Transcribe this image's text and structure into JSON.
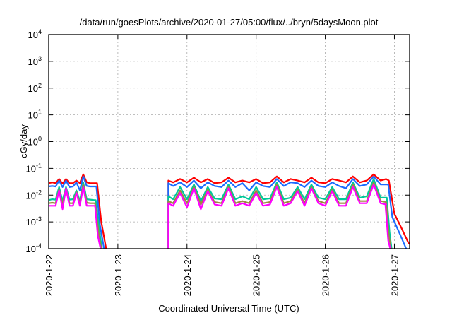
{
  "chart_data": {
    "type": "line",
    "title": "/data/run/goesPlots/archive/2020-01-27/05:00/flux/../bryn/5daysMoon.plot",
    "xlabel": "Coordinated Universal Time (UTC)",
    "ylabel": "cGy/day",
    "yscale": "log",
    "ylim": [
      0.0001,
      10000
    ],
    "xlim": [
      22.0,
      27.22
    ],
    "grid": true,
    "x_ticks": [
      {
        "value": 22,
        "label": "2020-1-22"
      },
      {
        "value": 23,
        "label": "2020-1-23"
      },
      {
        "value": 24,
        "label": "2020-1-24"
      },
      {
        "value": 25,
        "label": "2020-1-25"
      },
      {
        "value": 26,
        "label": "2020-1-26"
      },
      {
        "value": 27,
        "label": "2020-1-27"
      }
    ],
    "y_ticks": [
      {
        "value": 0.0001,
        "base": "10",
        "exp": "-4"
      },
      {
        "value": 0.001,
        "base": "10",
        "exp": "-3"
      },
      {
        "value": 0.01,
        "base": "10",
        "exp": "-2"
      },
      {
        "value": 0.1,
        "base": "10",
        "exp": "-1"
      },
      {
        "value": 1,
        "base": "10",
        "exp": "0"
      },
      {
        "value": 10,
        "base": "10",
        "exp": "1"
      },
      {
        "value": 100,
        "base": "10",
        "exp": "2"
      },
      {
        "value": 1000,
        "base": "10",
        "exp": "3"
      },
      {
        "value": 10000,
        "base": "10",
        "exp": "4"
      }
    ],
    "seg1_x": [
      22.0,
      22.05,
      22.1,
      22.15,
      22.2,
      22.25,
      22.3,
      22.35,
      22.4,
      22.45,
      22.5,
      22.55,
      22.6,
      22.66
    ],
    "seg2_x": [
      23.73,
      23.8,
      23.9,
      24.0,
      24.1,
      24.2,
      24.3,
      24.4,
      24.5,
      24.6,
      24.7,
      24.8,
      24.9,
      25.0,
      25.1,
      25.2,
      25.3,
      25.4,
      25.5,
      25.6,
      25.7,
      25.8,
      25.9,
      26.0,
      26.1,
      26.2,
      26.3,
      26.4,
      26.5,
      26.6,
      26.7,
      26.8,
      26.88
    ],
    "series": [
      {
        "name": "red",
        "color": "#ff0000",
        "seg1": [
          0.028,
          0.03,
          0.028,
          0.04,
          0.027,
          0.04,
          0.028,
          0.028,
          0.035,
          0.028,
          0.06,
          0.03,
          0.028,
          0.028
        ],
        "drop1": [
          [
            22.7,
            0.028
          ],
          [
            22.76,
            0.001
          ],
          [
            22.83,
            0.0001
          ]
        ],
        "seg2": [
          0.035,
          0.03,
          0.04,
          0.03,
          0.045,
          0.03,
          0.04,
          0.028,
          0.03,
          0.045,
          0.03,
          0.035,
          0.03,
          0.04,
          0.028,
          0.03,
          0.05,
          0.03,
          0.04,
          0.035,
          0.03,
          0.045,
          0.03,
          0.028,
          0.04,
          0.035,
          0.03,
          0.05,
          0.03,
          0.035,
          0.06,
          0.035,
          0.04
        ],
        "drop2": [
          [
            26.92,
            0.035
          ],
          [
            27.0,
            0.002
          ],
          [
            27.1,
            0.0006
          ],
          [
            27.21,
            0.00015
          ]
        ]
      },
      {
        "name": "blue",
        "color": "#1a6bff",
        "seg1": [
          0.021,
          0.022,
          0.021,
          0.035,
          0.02,
          0.035,
          0.02,
          0.021,
          0.03,
          0.015,
          0.05,
          0.022,
          0.021,
          0.021
        ],
        "drop1": [
          [
            22.69,
            0.021
          ],
          [
            22.74,
            0.0008
          ],
          [
            22.8,
            0.0001
          ]
        ],
        "seg2": [
          0.028,
          0.022,
          0.03,
          0.02,
          0.035,
          0.018,
          0.03,
          0.022,
          0.02,
          0.035,
          0.02,
          0.028,
          0.015,
          0.03,
          0.022,
          0.02,
          0.04,
          0.022,
          0.03,
          0.028,
          0.02,
          0.035,
          0.022,
          0.02,
          0.03,
          0.022,
          0.018,
          0.04,
          0.022,
          0.025,
          0.05,
          0.025,
          0.025
        ],
        "drop2": [
          [
            26.91,
            0.025
          ],
          [
            26.97,
            0.0015
          ],
          [
            27.07,
            0.0004
          ],
          [
            27.17,
            0.0001
          ]
        ]
      },
      {
        "name": "teal",
        "color": "#00c89a",
        "seg1": [
          0.0065,
          0.007,
          0.0068,
          0.02,
          0.006,
          0.02,
          0.0068,
          0.007,
          0.015,
          0.006,
          0.03,
          0.007,
          0.0068,
          0.0065
        ],
        "drop1": [
          [
            22.68,
            0.0065
          ],
          [
            22.73,
            0.0005
          ],
          [
            22.77,
            0.0001
          ]
        ],
        "seg2": [
          0.009,
          0.007,
          0.02,
          0.007,
          0.025,
          0.006,
          0.02,
          0.0075,
          0.007,
          0.025,
          0.007,
          0.009,
          0.007,
          0.02,
          0.007,
          0.0075,
          0.03,
          0.007,
          0.008,
          0.02,
          0.007,
          0.025,
          0.008,
          0.007,
          0.02,
          0.007,
          0.007,
          0.03,
          0.008,
          0.009,
          0.04,
          0.008,
          0.008
        ],
        "drop2": [
          [
            26.89,
            0.008
          ],
          [
            26.93,
            0.0004
          ],
          [
            26.96,
            0.0001
          ]
        ]
      },
      {
        "name": "olive",
        "color": "#9a8a40",
        "seg1": [
          0.005,
          0.0052,
          0.005,
          0.016,
          0.0045,
          0.017,
          0.005,
          0.005,
          0.013,
          0.0048,
          0.025,
          0.0052,
          0.005,
          0.005
        ],
        "drop1": [
          [
            22.67,
            0.005
          ],
          [
            22.72,
            0.0004
          ],
          [
            22.76,
            0.0001
          ]
        ],
        "seg2": [
          0.006,
          0.005,
          0.015,
          0.005,
          0.02,
          0.0045,
          0.016,
          0.0055,
          0.005,
          0.02,
          0.005,
          0.006,
          0.005,
          0.015,
          0.005,
          0.0055,
          0.025,
          0.005,
          0.006,
          0.016,
          0.005,
          0.02,
          0.006,
          0.005,
          0.016,
          0.005,
          0.005,
          0.025,
          0.006,
          0.006,
          0.03,
          0.006,
          0.0055
        ],
        "drop2": [
          [
            26.88,
            0.0055
          ],
          [
            26.92,
            0.0003
          ],
          [
            26.95,
            0.0001
          ]
        ]
      },
      {
        "name": "magenta",
        "color": "#ff00ff",
        "seg1": [
          0.004,
          0.004,
          0.004,
          0.015,
          0.003,
          0.018,
          0.004,
          0.004,
          0.012,
          0.004,
          0.02,
          0.004,
          0.004,
          0.004
        ],
        "drop1": [
          [
            22.67,
            0.004
          ],
          [
            22.71,
            0.0003
          ],
          [
            22.75,
            0.0001
          ]
        ],
        "seg2": [
          0.005,
          0.004,
          0.012,
          0.0035,
          0.018,
          0.003,
          0.014,
          0.0045,
          0.004,
          0.018,
          0.004,
          0.005,
          0.004,
          0.012,
          0.004,
          0.0045,
          0.02,
          0.004,
          0.005,
          0.014,
          0.004,
          0.018,
          0.005,
          0.004,
          0.014,
          0.004,
          0.004,
          0.02,
          0.005,
          0.005,
          0.025,
          0.005,
          0.0045
        ],
        "drop2": [
          [
            26.87,
            0.0045
          ],
          [
            26.91,
            0.0002
          ],
          [
            26.94,
            0.0001
          ]
        ]
      }
    ]
  }
}
